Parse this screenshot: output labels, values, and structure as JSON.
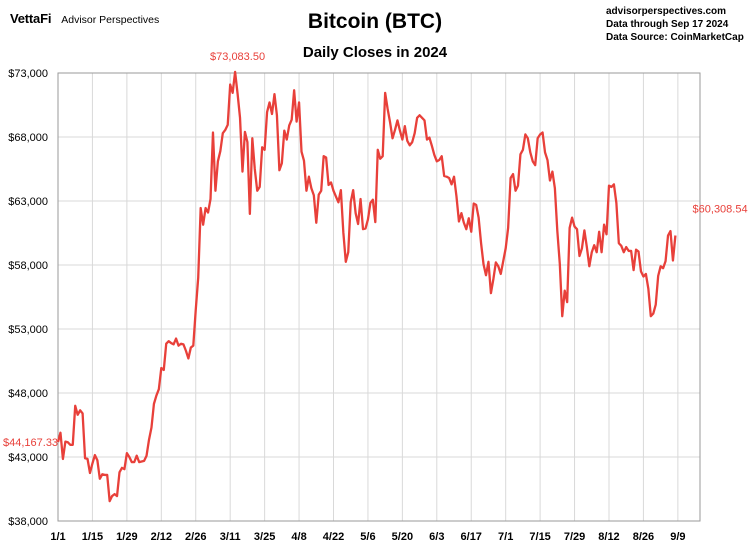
{
  "header": {
    "brand": "VettaFi",
    "brand_sub": "Advisor Perspectives",
    "source_lines": [
      "advisorperspectives.com",
      "Data through Sep 17 2024",
      "Data Source: CoinMarketCap"
    ]
  },
  "colors": {
    "line": "#e8403a",
    "label": "#e8403a",
    "grid": "#d9d9d9",
    "axis": "#9a9a9a"
  },
  "chart_data": {
    "type": "line",
    "title": "Bitcoin (BTC)",
    "subtitle": "Daily Closes in 2024",
    "xlabel": "",
    "ylabel": "",
    "ylim": [
      38000,
      73000
    ],
    "yticks": [
      38000,
      43000,
      48000,
      53000,
      58000,
      63000,
      68000,
      73000
    ],
    "ytick_labels": [
      "$38,000",
      "$43,000",
      "$48,000",
      "$53,000",
      "$58,000",
      "$63,000",
      "$68,000",
      "$73,000"
    ],
    "xlim_days": [
      1,
      262
    ],
    "x_ticks": [
      {
        "day": 1,
        "label": "1/1"
      },
      {
        "day": 15,
        "label": "1/15"
      },
      {
        "day": 29,
        "label": "1/29"
      },
      {
        "day": 43,
        "label": "2/12"
      },
      {
        "day": 57,
        "label": "2/26"
      },
      {
        "day": 71,
        "label": "3/11"
      },
      {
        "day": 85,
        "label": "3/25"
      },
      {
        "day": 99,
        "label": "4/8"
      },
      {
        "day": 113,
        "label": "4/22"
      },
      {
        "day": 127,
        "label": "5/6"
      },
      {
        "day": 141,
        "label": "5/20"
      },
      {
        "day": 155,
        "label": "6/3"
      },
      {
        "day": 169,
        "label": "6/17"
      },
      {
        "day": 183,
        "label": "7/1"
      },
      {
        "day": 197,
        "label": "7/15"
      },
      {
        "day": 211,
        "label": "7/29"
      },
      {
        "day": 225,
        "label": "8/12"
      },
      {
        "day": 239,
        "label": "8/26"
      },
      {
        "day": 253,
        "label": "9/9"
      }
    ],
    "annotations": [
      {
        "day": 1,
        "value": 44167.33,
        "text": "$44,167.33",
        "placement": "left"
      },
      {
        "day": 74,
        "value": 73083.5,
        "text": "$73,083.50",
        "placement": "above"
      },
      {
        "day": 261,
        "value": 60308.54,
        "text": "$60,308.54",
        "placement": "above-right"
      }
    ],
    "series": [
      {
        "name": "BTC Daily Close",
        "start_day": 1,
        "values": [
          44167,
          44900,
          42850,
          44200,
          44150,
          43950,
          43950,
          47000,
          46300,
          46650,
          46400,
          42900,
          42850,
          41750,
          42500,
          43150,
          42750,
          41300,
          41650,
          41600,
          41600,
          39550,
          39950,
          40100,
          39950,
          41800,
          42150,
          42050,
          43300,
          43000,
          42600,
          42600,
          43100,
          42600,
          42650,
          42700,
          43100,
          44350,
          45300,
          47150,
          47800,
          48300,
          49950,
          49800,
          51850,
          52050,
          51900,
          51800,
          52250,
          51700,
          51850,
          51800,
          51300,
          50700,
          51550,
          51700,
          54500,
          57000,
          62450,
          61150,
          62450,
          62100,
          63150,
          68350,
          63800,
          66100,
          66900,
          68300,
          68550,
          68950,
          72100,
          71450,
          73083,
          71400,
          69500,
          65300,
          68400,
          67600,
          62000,
          67900,
          65500,
          63800,
          64100,
          67200,
          67000,
          69950,
          70700,
          69800,
          71350,
          69700,
          65400,
          65950,
          68500,
          67800,
          68900,
          69350,
          71650,
          69200,
          70700,
          66850,
          66150,
          63800,
          64900,
          64000,
          63450,
          61300,
          63500,
          63800,
          66500,
          66400,
          64250,
          64450,
          63800,
          63350,
          62900,
          63850,
          60550,
          58250,
          59000,
          62900,
          63850,
          62050,
          61200,
          63150,
          60800,
          60850,
          61550,
          62850,
          63100,
          61350,
          67000,
          66300,
          66500,
          71450,
          70200,
          69150,
          67900,
          68550,
          69300,
          68500,
          67800,
          68850,
          67700,
          67350,
          67600,
          68300,
          69500,
          69700,
          69500,
          69300,
          67800,
          67950,
          67300,
          66600,
          66100,
          66200,
          66500,
          64950,
          64900,
          64800,
          64300,
          64900,
          63350,
          61400,
          62050,
          61300,
          60800,
          61650,
          60600,
          62800,
          62700,
          61700,
          59700,
          58050,
          57200,
          58250,
          55800,
          56900,
          58200,
          57900,
          57300,
          58300,
          59300,
          60900,
          64800,
          65100,
          63800,
          64200,
          66650,
          67000,
          68200,
          67900,
          66800,
          66100,
          65800,
          67900,
          68200,
          68350,
          66800,
          66200,
          64600,
          65300,
          64000,
          60650,
          58100,
          54000,
          56000,
          55100,
          60900,
          61700,
          61000,
          60800,
          58700,
          59300,
          60700,
          59400,
          57900,
          59000,
          59550,
          59000,
          60600,
          59000,
          61150,
          60400,
          64200,
          64100,
          64300,
          62850,
          59700,
          59500,
          59000,
          59400,
          59100,
          59100,
          57600,
          59200,
          59050,
          57500,
          57100,
          57300,
          56150,
          54000,
          54200,
          54900,
          57150,
          57900,
          57750,
          58300,
          60300,
          60650,
          58350,
          60308
        ]
      }
    ]
  }
}
